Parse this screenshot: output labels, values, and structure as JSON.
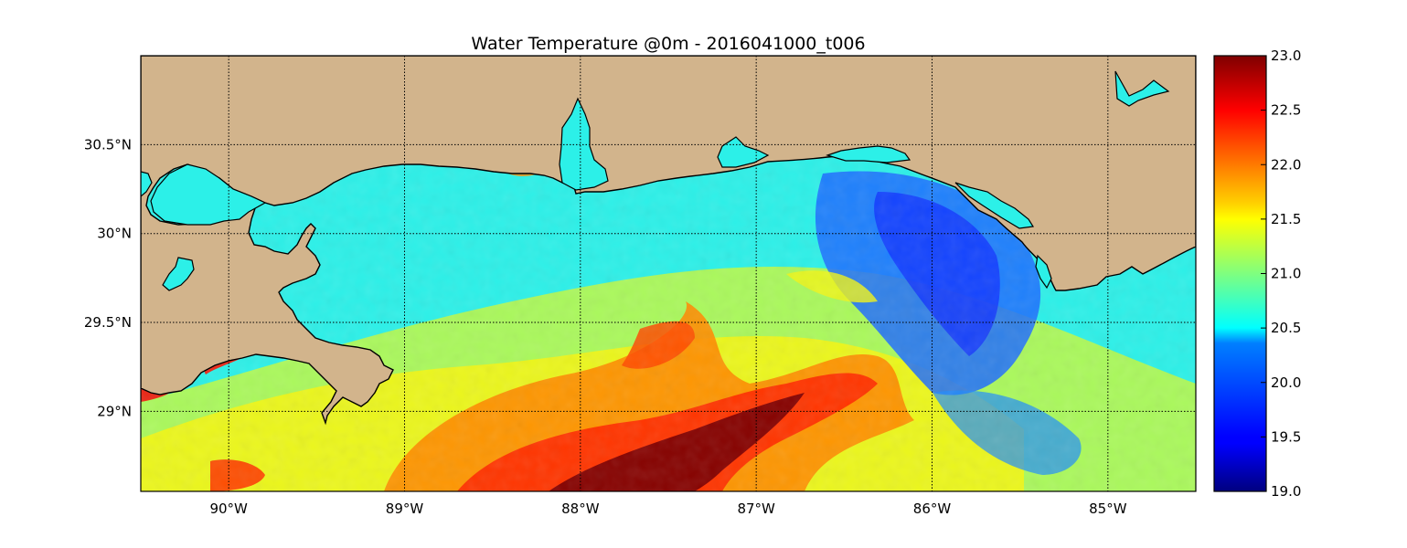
{
  "title": "Water Temperature @0m - 2016041000_t006",
  "map": {
    "lon_range": [
      -90.5,
      -84.5
    ],
    "lat_range": [
      28.55,
      31.0
    ],
    "lon_ticks": [
      {
        "value": -90,
        "label": "90°W"
      },
      {
        "value": -89,
        "label": "89°W"
      },
      {
        "value": -88,
        "label": "88°W"
      },
      {
        "value": -87,
        "label": "87°W"
      },
      {
        "value": -86,
        "label": "86°W"
      },
      {
        "value": -85,
        "label": "85°W"
      }
    ],
    "lat_ticks": [
      {
        "value": 30.5,
        "label": "30.5°N"
      },
      {
        "value": 30.0,
        "label": "30°N"
      },
      {
        "value": 29.5,
        "label": "29.5°N"
      },
      {
        "value": 29.0,
        "label": "29°N"
      }
    ],
    "land_color": "#d2b48c",
    "grid": "dotted"
  },
  "colorbar": {
    "colormap": "jet",
    "range": [
      19.0,
      23.0
    ],
    "ticks": [
      "23.0",
      "22.5",
      "22.0",
      "21.5",
      "21.0",
      "20.5",
      "20.0",
      "19.5",
      "19.0"
    ]
  }
}
